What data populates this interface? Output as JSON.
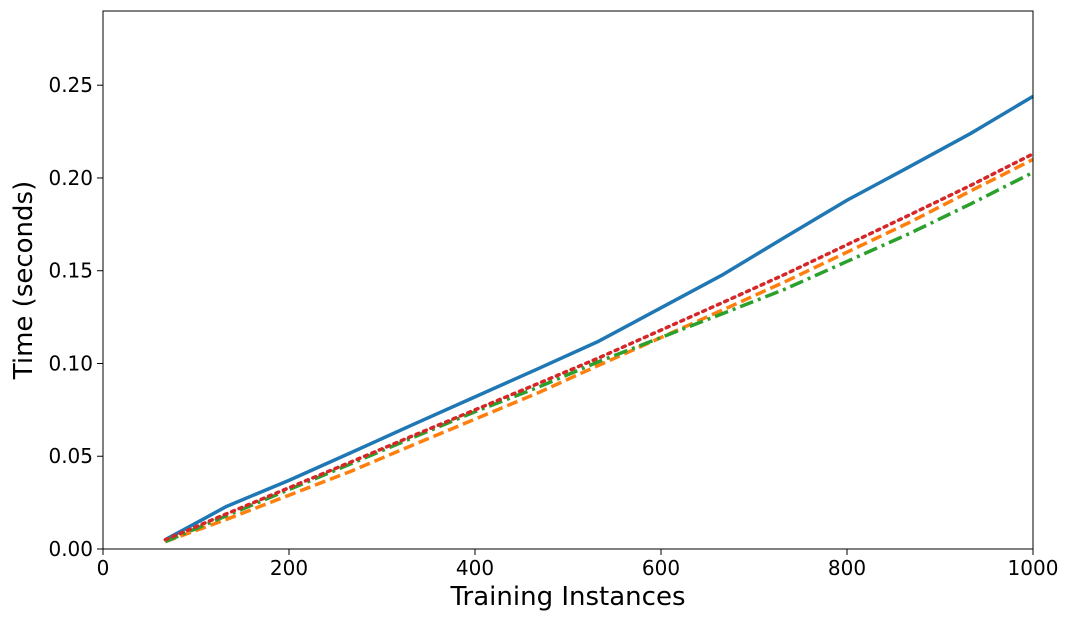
{
  "chart_data": {
    "type": "line",
    "title": "",
    "xlabel": "Training Instances",
    "ylabel": "Time (seconds)",
    "xlim": [
      0,
      1000
    ],
    "ylim": [
      0,
      0.29
    ],
    "xticks": [
      0,
      200,
      400,
      600,
      800,
      1000
    ],
    "xtick_labels": [
      "0",
      "200",
      "400",
      "600",
      "800",
      "1000"
    ],
    "yticks": [
      0.0,
      0.05,
      0.1,
      0.15,
      0.2,
      0.25
    ],
    "ytick_labels": [
      "0.00",
      "0.05",
      "0.10",
      "0.15",
      "0.20",
      "0.25"
    ],
    "grid": false,
    "legend": "none",
    "series": [
      {
        "color": "#1f77b4",
        "dash": "solid",
        "x": [
          67,
          100,
          133,
          200,
          267,
          333,
          400,
          467,
          533,
          600,
          667,
          733,
          800,
          867,
          933,
          1000
        ],
        "y": [
          0.005,
          0.014,
          0.023,
          0.037,
          0.052,
          0.067,
          0.082,
          0.097,
          0.112,
          0.13,
          0.148,
          0.168,
          0.188,
          0.206,
          0.224,
          0.244
        ]
      },
      {
        "color": "#ff7f0e",
        "dash": "dashed",
        "x": [
          67,
          100,
          133,
          200,
          267,
          333,
          400,
          467,
          533,
          600,
          667,
          733,
          800,
          867,
          933,
          1000
        ],
        "y": [
          0.004,
          0.01,
          0.016,
          0.029,
          0.042,
          0.056,
          0.07,
          0.084,
          0.099,
          0.114,
          0.129,
          0.144,
          0.16,
          0.176,
          0.193,
          0.21
        ]
      },
      {
        "color": "#2ca02c",
        "dash": "dashdot",
        "x": [
          67,
          100,
          133,
          200,
          267,
          333,
          400,
          467,
          533,
          600,
          667,
          733,
          800,
          867,
          933,
          1000
        ],
        "y": [
          0.004,
          0.011,
          0.018,
          0.032,
          0.046,
          0.06,
          0.074,
          0.087,
          0.101,
          0.114,
          0.127,
          0.14,
          0.155,
          0.17,
          0.186,
          0.203
        ]
      },
      {
        "color": "#d62728",
        "dash": "dotted",
        "x": [
          67,
          100,
          133,
          200,
          267,
          333,
          400,
          467,
          533,
          600,
          667,
          733,
          800,
          867,
          933,
          1000
        ],
        "y": [
          0.005,
          0.012,
          0.019,
          0.033,
          0.047,
          0.061,
          0.075,
          0.089,
          0.103,
          0.118,
          0.133,
          0.148,
          0.164,
          0.18,
          0.196,
          0.213
        ]
      }
    ]
  }
}
